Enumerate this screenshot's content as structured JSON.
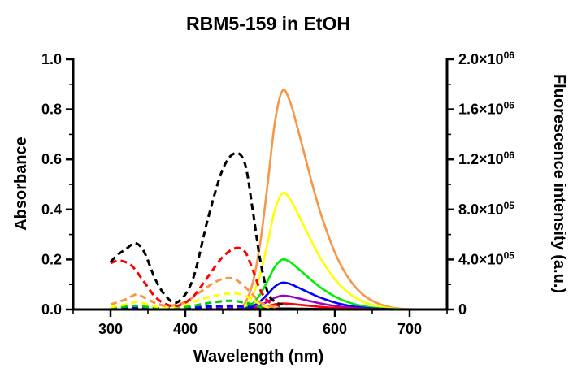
{
  "chart_data": {
    "type": "line",
    "title": "RBM5-159 in EtOH",
    "xlabel": "Wavelength (nm)",
    "ylabel": "Absorbance",
    "y2label": "Fluorescence intensity  (a.u.)",
    "xlim": [
      250,
      750
    ],
    "ylim": [
      0,
      1.0
    ],
    "y2lim": [
      0,
      2000000
    ],
    "xticks": [
      "300",
      "400",
      "500",
      "600",
      "700"
    ],
    "yticks": [
      "0.0",
      "0.2",
      "0.4",
      "0.6",
      "0.8",
      "1.0"
    ],
    "y2ticks": [
      {
        "base": "0",
        "exp": ""
      },
      {
        "base": "4.0×10",
        "exp": "05"
      },
      {
        "base": "8.0×10",
        "exp": "05"
      },
      {
        "base": "1.2×10",
        "exp": "06"
      },
      {
        "base": "1.6×10",
        "exp": "06"
      },
      {
        "base": "2.0×10",
        "exp": "06"
      }
    ],
    "grid": false,
    "absorbance_series": [
      {
        "color": "#000000",
        "x": [
          300,
          310,
          320,
          333,
          345,
          360,
          375,
          390,
          410,
          430,
          450,
          467,
          480,
          490,
          500,
          510,
          520,
          530
        ],
        "y": [
          0.19,
          0.22,
          0.24,
          0.265,
          0.23,
          0.12,
          0.05,
          0.03,
          0.12,
          0.36,
          0.56,
          0.625,
          0.58,
          0.4,
          0.2,
          0.07,
          0.03,
          0.02
        ]
      },
      {
        "color": "#ff0000",
        "x": [
          300,
          310,
          320,
          330,
          345,
          360,
          375,
          390,
          410,
          430,
          450,
          467,
          480,
          490,
          500,
          510,
          520,
          530
        ],
        "y": [
          0.185,
          0.195,
          0.19,
          0.17,
          0.11,
          0.05,
          0.02,
          0.015,
          0.05,
          0.13,
          0.21,
          0.245,
          0.23,
          0.16,
          0.08,
          0.035,
          0.02,
          0.01
        ]
      },
      {
        "color": "#f79646",
        "x": [
          300,
          320,
          335,
          350,
          365,
          380,
          400,
          420,
          440,
          455,
          467,
          480,
          490,
          500,
          510,
          520
        ],
        "y": [
          0.02,
          0.04,
          0.06,
          0.04,
          0.02,
          0.015,
          0.03,
          0.07,
          0.11,
          0.125,
          0.12,
          0.09,
          0.06,
          0.03,
          0.015,
          0.01
        ]
      },
      {
        "color": "#ffff00",
        "x": [
          300,
          320,
          335,
          350,
          365,
          380,
          400,
          420,
          440,
          460,
          475,
          490,
          500,
          510,
          520
        ],
        "y": [
          0.01,
          0.02,
          0.03,
          0.02,
          0.01,
          0.008,
          0.02,
          0.04,
          0.055,
          0.065,
          0.06,
          0.04,
          0.02,
          0.01,
          0.005
        ]
      },
      {
        "color": "#00cc00",
        "x": [
          300,
          320,
          335,
          350,
          370,
          400,
          420,
          440,
          460,
          475,
          490,
          500,
          510
        ],
        "y": [
          0.005,
          0.012,
          0.015,
          0.01,
          0.005,
          0.01,
          0.02,
          0.03,
          0.035,
          0.03,
          0.02,
          0.01,
          0.005
        ]
      },
      {
        "color": "#0000ff",
        "x": [
          300,
          320,
          340,
          360,
          400,
          430,
          460,
          480,
          500,
          510
        ],
        "y": [
          0.003,
          0.008,
          0.008,
          0.004,
          0.005,
          0.012,
          0.015,
          0.012,
          0.005,
          0.002
        ]
      },
      {
        "color": "#9900cc",
        "x": [
          300,
          330,
          360,
          400,
          440,
          470,
          490,
          510
        ],
        "y": [
          0.002,
          0.004,
          0.003,
          0.003,
          0.006,
          0.008,
          0.004,
          0.001
        ]
      }
    ],
    "fluorescence_series": [
      {
        "color": "#f79646",
        "peak": 1750000
      },
      {
        "color": "#ffff00",
        "peak": 930000
      },
      {
        "color": "#00ee00",
        "peak": 400000
      },
      {
        "color": "#0000ff",
        "peak": 215000
      },
      {
        "color": "#9900cc",
        "peak": 110000
      },
      {
        "color": "#ff0000",
        "peak": 48000
      },
      {
        "color": "#000000",
        "peak": 8000
      }
    ],
    "fluorescence_shape": {
      "x": [
        470,
        480,
        490,
        500,
        510,
        520,
        530,
        540,
        550,
        560,
        570,
        580,
        590,
        600,
        610,
        620,
        630,
        640,
        650,
        660,
        670,
        680,
        690,
        700
      ],
      "rel": [
        0,
        0.03,
        0.12,
        0.3,
        0.57,
        0.86,
        1.0,
        0.95,
        0.83,
        0.7,
        0.57,
        0.45,
        0.35,
        0.26,
        0.19,
        0.135,
        0.093,
        0.062,
        0.04,
        0.025,
        0.014,
        0.007,
        0.003,
        0.001
      ]
    }
  }
}
